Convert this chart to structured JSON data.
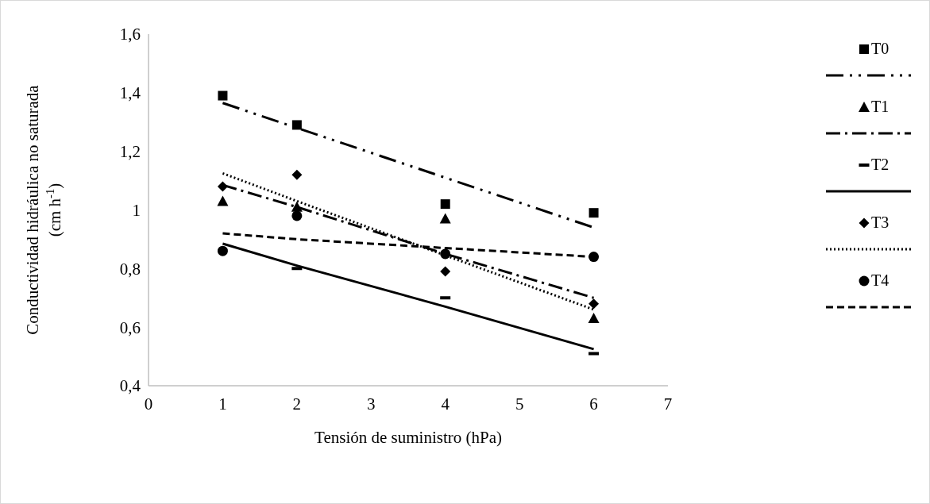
{
  "chart_data": {
    "type": "scatter",
    "xlabel": "Tensión de suministro (hPa)",
    "ylabel": "Conductividad hidráulica no saturada (cm h$^{-1}$)",
    "xlim": [
      0,
      7
    ],
    "xticks": [
      0,
      1,
      2,
      3,
      4,
      5,
      6,
      7
    ],
    "ylim": [
      0.4,
      1.6
    ],
    "yticks": [
      {
        "value": 0.4,
        "label": "0,4"
      },
      {
        "value": 0.6,
        "label": "0,6"
      },
      {
        "value": 0.8,
        "label": "0,8"
      },
      {
        "value": 1,
        "label": "1"
      },
      {
        "value": 1.2,
        "label": "1,2"
      },
      {
        "value": 1.4,
        "label": "1,4"
      },
      {
        "value": 1.6,
        "label": "1,6"
      }
    ],
    "grid": false,
    "legend": "right",
    "x": [
      1,
      2,
      4,
      6
    ],
    "series": [
      {
        "name": "T0",
        "color": "#000000",
        "marker": "square",
        "values": [
          1.39,
          1.29,
          1.02,
          0.99
        ]
      },
      {
        "type": "line",
        "color": "#000000",
        "line_style": "dashdotdot",
        "values": [
          1.365,
          1.28,
          1.11,
          0.94
        ]
      },
      {
        "name": "T1",
        "color": "#000000",
        "marker": "triangle",
        "values": [
          1.03,
          1.01,
          0.97,
          0.63
        ]
      },
      {
        "type": "line",
        "color": "#000000",
        "line_style": "dashdot",
        "values": [
          1.085,
          1.01,
          0.85,
          0.7
        ]
      },
      {
        "name": "T2",
        "color": "#000000",
        "values": [
          null,
          0.8,
          0.7,
          0.51
        ]
      },
      {
        "type": "line",
        "color": "#000000",
        "line_style": "solid",
        "values": [
          0.885,
          0.81,
          0.67,
          0.525
        ]
      },
      {
        "name": "T3",
        "color": "#000000",
        "marker": "diamond",
        "values": [
          1.08,
          1.12,
          0.79,
          0.68
        ]
      },
      {
        "type": "line",
        "color": "#000000",
        "line_style": "dotted",
        "values": [
          1.125,
          1.03,
          0.845,
          0.66
        ]
      },
      {
        "name": "T4",
        "color": "#000000",
        "marker": "circle",
        "values": [
          0.86,
          0.98,
          0.85,
          0.84
        ]
      },
      {
        "type": "line",
        "color": "#000000",
        "line_style": "dashed",
        "values": [
          0.92,
          0.9,
          0.87,
          0.84
        ]
      }
    ]
  }
}
